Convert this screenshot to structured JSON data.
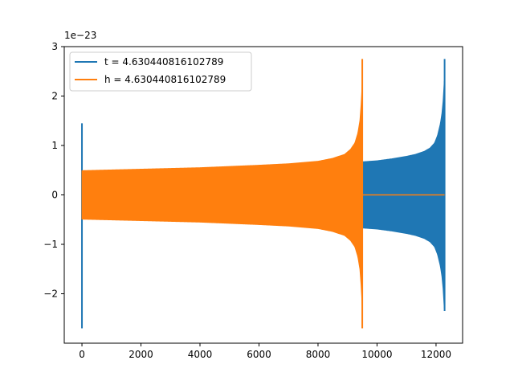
{
  "chart_data": {
    "type": "line",
    "title": "",
    "xlabel": "",
    "ylabel": "",
    "y_scale_label": "1e−23",
    "xlim": [
      -600,
      12900
    ],
    "ylim": [
      -3.0,
      3.0
    ],
    "x_ticks": [
      0,
      2000,
      4000,
      6000,
      8000,
      10000,
      12000
    ],
    "x_tick_labels": [
      "0",
      "2000",
      "4000",
      "6000",
      "8000",
      "10000",
      "12000"
    ],
    "y_ticks": [
      -2,
      -1,
      0,
      1,
      2,
      3
    ],
    "y_tick_labels": [
      "−2",
      "−1",
      "0",
      "1",
      "2",
      "3"
    ],
    "grid": false,
    "legend_position": "top-left",
    "series": [
      {
        "name": "t = 4.630440816102789",
        "color": "#1f77b4",
        "segments": [
          {
            "x": [
              0,
              30
            ],
            "y": [
              -2.7,
              1.45
            ]
          },
          {
            "x": [
              9500,
              9520
            ],
            "y": [
              -0.67,
              0.67
            ]
          },
          {
            "x": [
              9520,
              10000,
              10500,
              11000,
              11300,
              11600,
              11800,
              11950,
              12050,
              12150,
              12200,
              12240,
              12270,
              12290
            ],
            "y_abs": [
              0.67,
              0.69,
              0.73,
              0.78,
              0.82,
              0.88,
              0.95,
              1.05,
              1.2,
              1.45,
              1.65,
              1.9,
              2.2,
              2.4
            ],
            "peak": [
              -2.35,
              2.75
            ]
          }
        ],
        "flat_after": [
          12290,
          12290
        ]
      },
      {
        "name": "h = 4.630440816102789",
        "color": "#ff7f0e",
        "envelope": {
          "x": [
            0,
            2000,
            4000,
            6000,
            7000,
            8000,
            8500,
            8900,
            9100,
            9250,
            9350,
            9420,
            9470,
            9500
          ],
          "y_abs": [
            0.49,
            0.52,
            0.55,
            0.6,
            0.63,
            0.68,
            0.74,
            0.82,
            0.92,
            1.05,
            1.25,
            1.5,
            1.9,
            2.3
          ],
          "peak": [
            -2.7,
            2.75
          ],
          "peak_x": 9500
        },
        "flat": {
          "x": [
            9500,
            12290
          ],
          "y": 0.0
        }
      }
    ]
  }
}
